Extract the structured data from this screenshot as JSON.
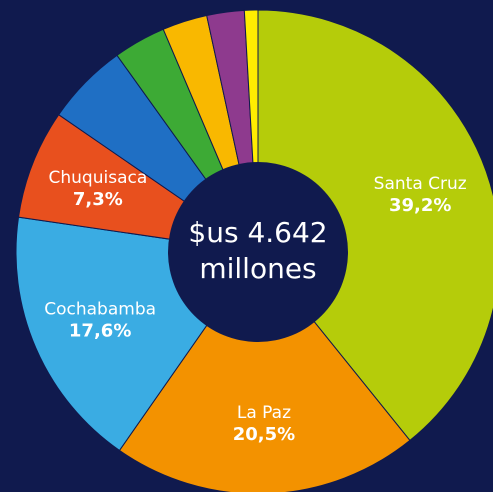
{
  "chart_data": {
    "type": "donut",
    "center_label": [
      "$us 4.642",
      "millones"
    ],
    "categories": [
      "Santa Cruz",
      "La Paz",
      "Cochabamba",
      "Chuquisaca",
      null,
      null,
      null,
      null,
      null
    ],
    "values": [
      39.2,
      20.5,
      17.6,
      7.3,
      5.5,
      3.5,
      3,
      2.5,
      0.9
    ],
    "value_labels": [
      "39,2%",
      "20,5%",
      "17,6%",
      "7,3%",
      null,
      null,
      null,
      null,
      null
    ],
    "colors": [
      "#b5cc0a",
      "#f39200",
      "#3aace3",
      "#e8501e",
      "#1f6fc4",
      "#3daa35",
      "#f9b800",
      "#8e3a8e",
      "#ffed00"
    ]
  }
}
